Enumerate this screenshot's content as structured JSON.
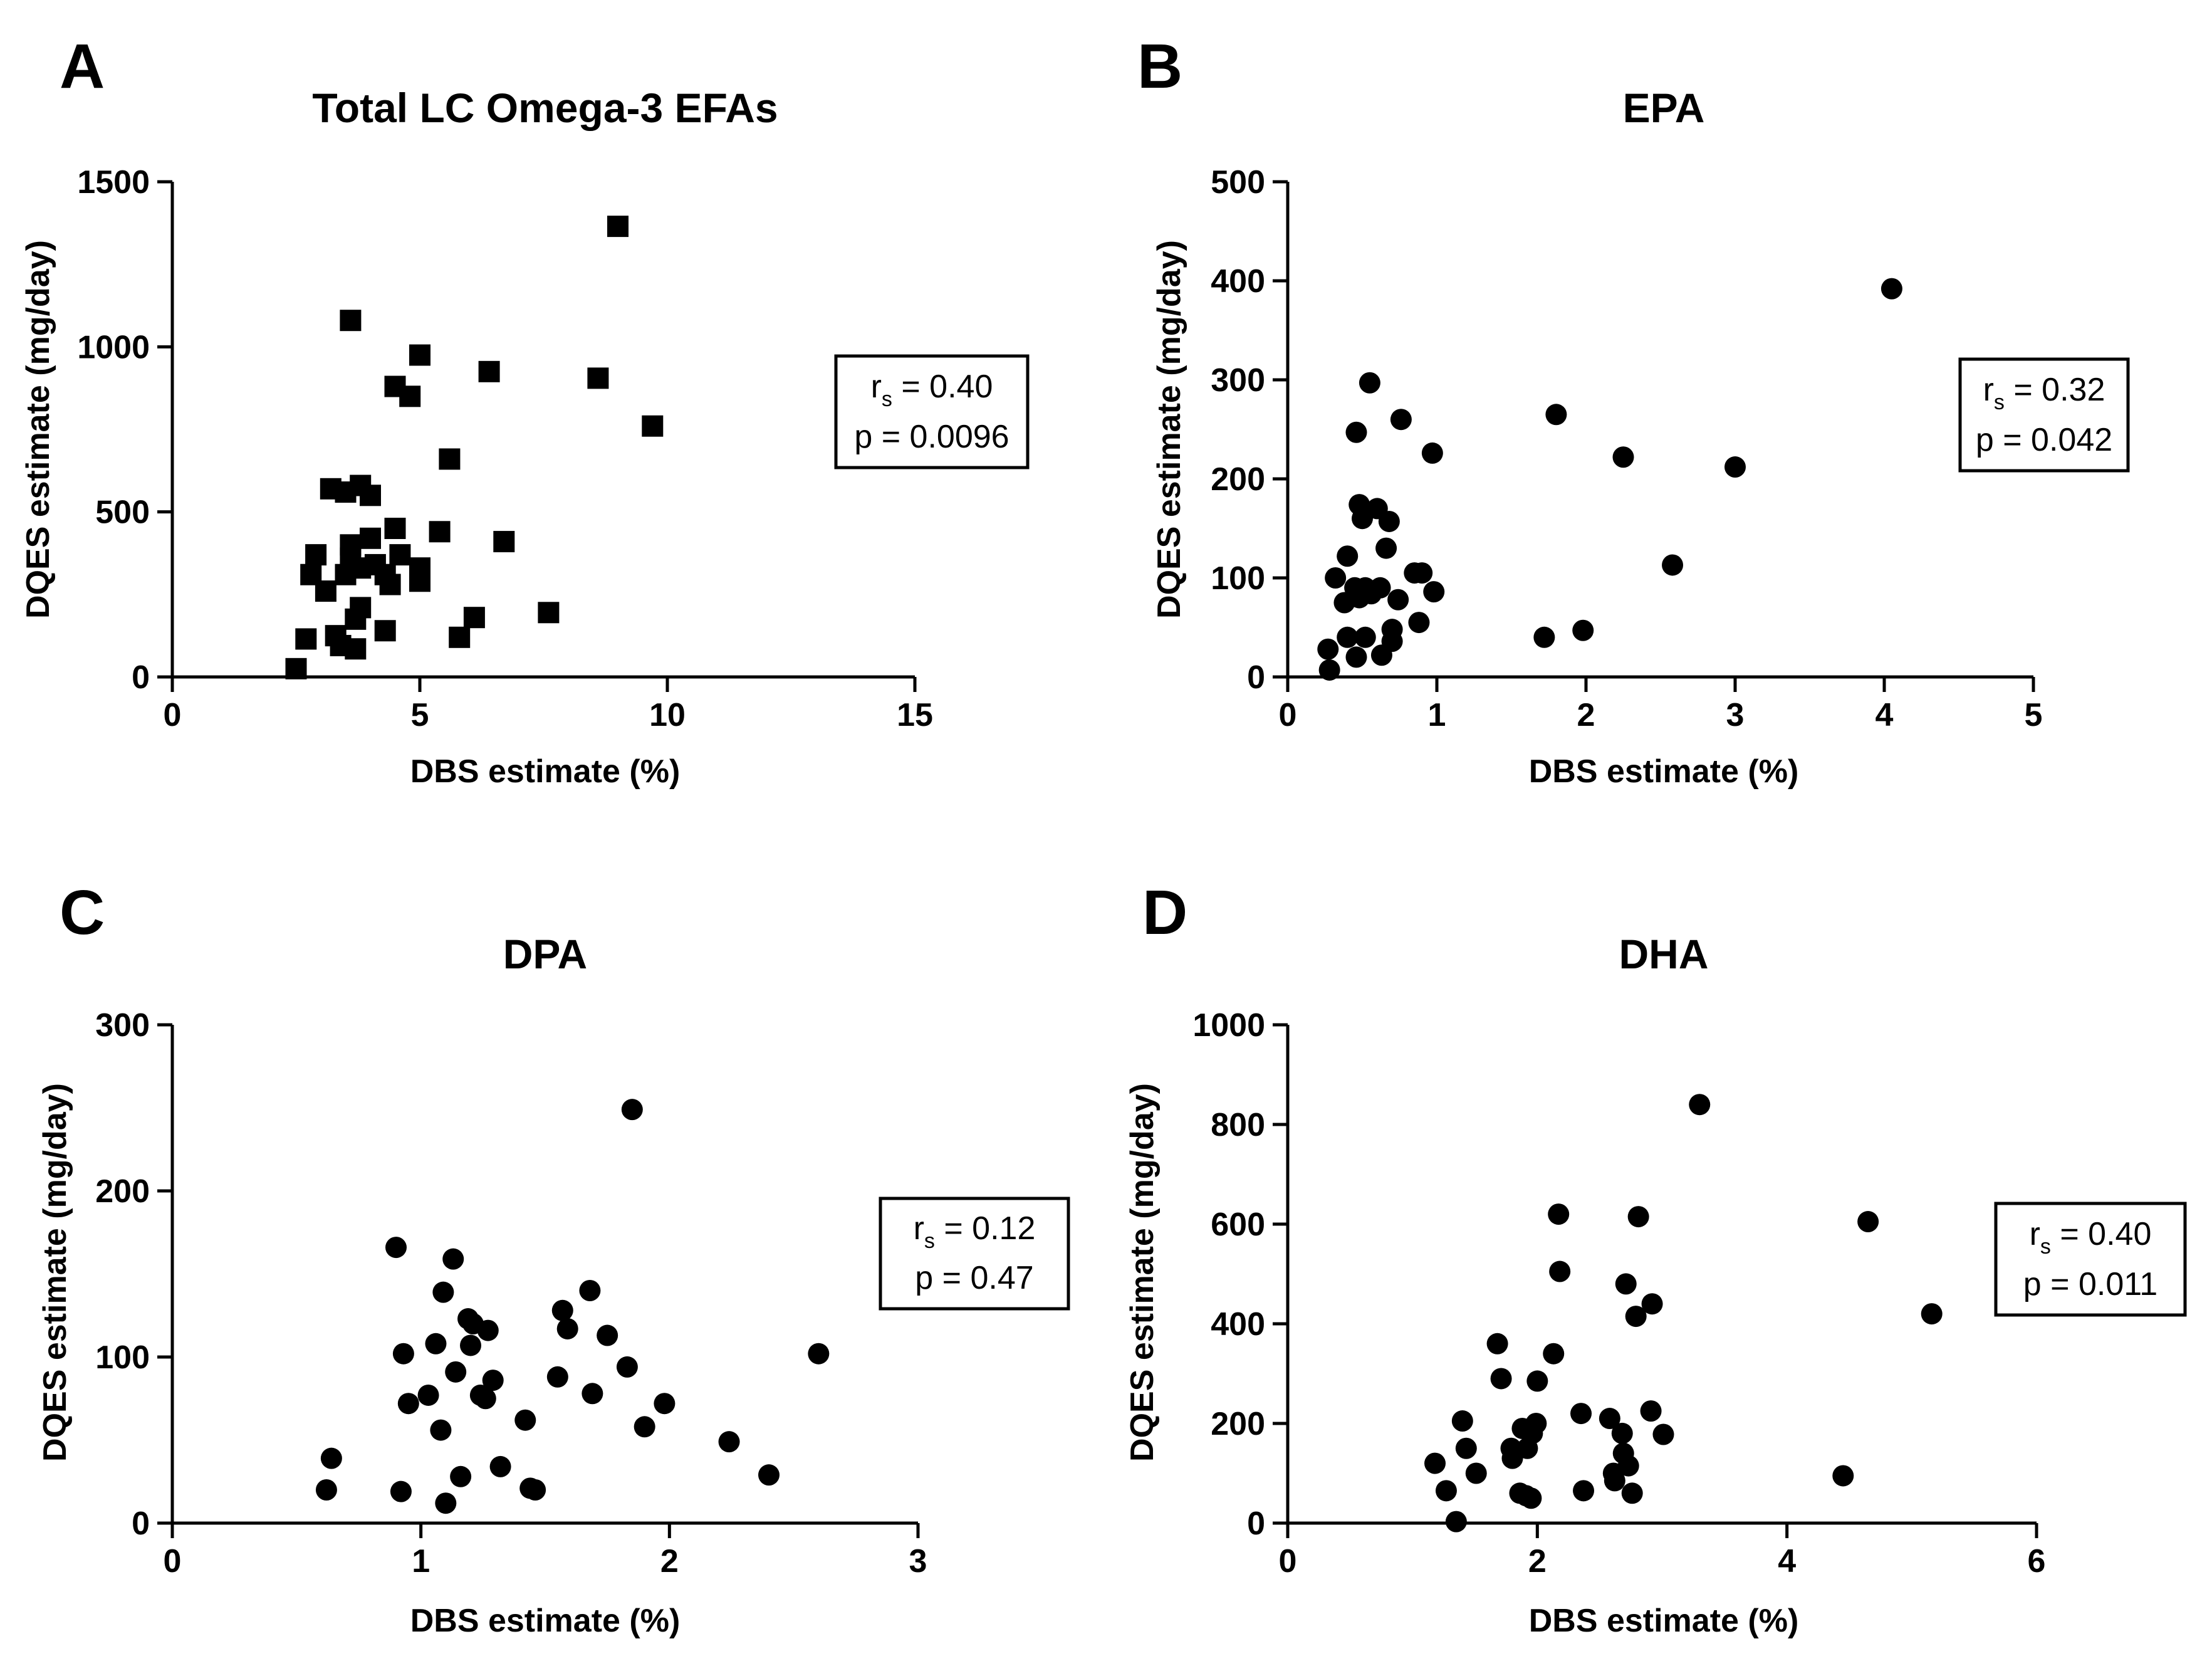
{
  "chart_data": [
    {
      "panel": "A",
      "type": "scatter",
      "title": "Total LC Omega-3 EFAs",
      "xlabel": "DBS estimate (%)",
      "ylabel": "DQES estimate (mg/day)",
      "xlim": [
        0,
        15
      ],
      "ylim": [
        0,
        1500
      ],
      "xticks": [
        0,
        5,
        10,
        15
      ],
      "yticks": [
        0,
        500,
        1000,
        1500
      ],
      "marker": "square",
      "stats": {
        "r_main": "r",
        "r_sub": "s",
        "r_value": " = 0.40",
        "p_text": "p = 0.0096"
      },
      "points": [
        [
          2.5,
          25
        ],
        [
          2.7,
          115
        ],
        [
          2.8,
          310
        ],
        [
          2.9,
          370
        ],
        [
          3.1,
          260
        ],
        [
          3.2,
          570
        ],
        [
          3.3,
          125
        ],
        [
          3.4,
          95
        ],
        [
          3.5,
          560
        ],
        [
          3.5,
          310
        ],
        [
          3.6,
          400
        ],
        [
          3.6,
          360
        ],
        [
          3.6,
          1080
        ],
        [
          3.7,
          85
        ],
        [
          3.7,
          175
        ],
        [
          3.8,
          580
        ],
        [
          3.8,
          330
        ],
        [
          3.8,
          210
        ],
        [
          4.0,
          550
        ],
        [
          4.0,
          420
        ],
        [
          4.1,
          340
        ],
        [
          4.3,
          310
        ],
        [
          4.3,
          140
        ],
        [
          4.4,
          280
        ],
        [
          4.5,
          880
        ],
        [
          4.5,
          450
        ],
        [
          4.6,
          370
        ],
        [
          4.8,
          850
        ],
        [
          5.0,
          975
        ],
        [
          5.0,
          330
        ],
        [
          5.0,
          290
        ],
        [
          5.4,
          440
        ],
        [
          5.6,
          660
        ],
        [
          5.8,
          120
        ],
        [
          6.1,
          180
        ],
        [
          6.4,
          925
        ],
        [
          6.7,
          410
        ],
        [
          7.6,
          195
        ],
        [
          8.6,
          905
        ],
        [
          9.0,
          1365
        ],
        [
          9.7,
          760
        ]
      ]
    },
    {
      "panel": "B",
      "type": "scatter",
      "title": "EPA",
      "xlabel": "DBS estimate (%)",
      "ylabel": "DQES estimate (mg/day)",
      "xlim": [
        0,
        5
      ],
      "ylim": [
        0,
        500
      ],
      "xticks": [
        0,
        1,
        2,
        3,
        4,
        5
      ],
      "yticks": [
        0,
        100,
        200,
        300,
        400,
        500
      ],
      "marker": "circle",
      "stats": {
        "r_main": "r",
        "r_sub": "s",
        "r_value": " = 0.32",
        "p_text": "p = 0.042"
      },
      "points": [
        [
          0.27,
          28
        ],
        [
          0.28,
          7
        ],
        [
          0.32,
          100
        ],
        [
          0.38,
          75
        ],
        [
          0.4,
          122
        ],
        [
          0.4,
          40
        ],
        [
          0.45,
          90
        ],
        [
          0.46,
          20
        ],
        [
          0.46,
          247
        ],
        [
          0.48,
          174
        ],
        [
          0.48,
          80
        ],
        [
          0.5,
          160
        ],
        [
          0.52,
          40
        ],
        [
          0.52,
          90
        ],
        [
          0.55,
          297
        ],
        [
          0.56,
          84
        ],
        [
          0.6,
          170
        ],
        [
          0.62,
          90
        ],
        [
          0.63,
          22
        ],
        [
          0.66,
          130
        ],
        [
          0.68,
          157
        ],
        [
          0.7,
          48
        ],
        [
          0.7,
          36
        ],
        [
          0.74,
          78
        ],
        [
          0.76,
          260
        ],
        [
          0.85,
          105
        ],
        [
          0.88,
          55
        ],
        [
          0.9,
          105
        ],
        [
          0.97,
          226
        ],
        [
          0.98,
          86
        ],
        [
          1.72,
          40
        ],
        [
          1.8,
          265
        ],
        [
          1.98,
          47
        ],
        [
          2.25,
          222
        ],
        [
          2.58,
          113
        ],
        [
          3.0,
          212
        ],
        [
          4.05,
          392
        ]
      ]
    },
    {
      "panel": "C",
      "type": "scatter",
      "title": "DPA",
      "xlabel": "DBS estimate (%)",
      "ylabel": "DQES estimate (mg/day)",
      "xlim": [
        0,
        3
      ],
      "ylim": [
        0,
        300
      ],
      "xticks": [
        0,
        1,
        2,
        3
      ],
      "yticks": [
        0,
        100,
        200,
        300
      ],
      "marker": "circle",
      "stats": {
        "r_main": "r",
        "r_sub": "s",
        "r_value": " = 0.12",
        "p_text": "p = 0.47"
      },
      "points": [
        [
          0.62,
          20
        ],
        [
          0.64,
          39
        ],
        [
          0.9,
          166
        ],
        [
          0.92,
          19
        ],
        [
          0.93,
          102
        ],
        [
          0.95,
          72
        ],
        [
          1.03,
          77
        ],
        [
          1.06,
          108
        ],
        [
          1.08,
          56
        ],
        [
          1.09,
          139
        ],
        [
          1.1,
          12
        ],
        [
          1.13,
          159
        ],
        [
          1.14,
          91
        ],
        [
          1.16,
          28
        ],
        [
          1.19,
          123
        ],
        [
          1.2,
          107
        ],
        [
          1.21,
          120
        ],
        [
          1.24,
          77
        ],
        [
          1.26,
          75
        ],
        [
          1.27,
          116
        ],
        [
          1.29,
          86
        ],
        [
          1.32,
          34
        ],
        [
          1.42,
          62
        ],
        [
          1.44,
          21
        ],
        [
          1.46,
          20
        ],
        [
          1.55,
          88
        ],
        [
          1.57,
          128
        ],
        [
          1.59,
          117
        ],
        [
          1.68,
          140
        ],
        [
          1.69,
          78
        ],
        [
          1.75,
          113
        ],
        [
          1.83,
          94
        ],
        [
          1.85,
          249
        ],
        [
          1.9,
          58
        ],
        [
          1.98,
          72
        ],
        [
          2.24,
          49
        ],
        [
          2.4,
          29
        ],
        [
          2.6,
          102
        ]
      ]
    },
    {
      "panel": "D",
      "type": "scatter",
      "title": "DHA",
      "xlabel": "DBS estimate (%)",
      "ylabel": "DQES estimate (mg/day)",
      "xlim": [
        0,
        6
      ],
      "ylim": [
        0,
        1000
      ],
      "xticks": [
        0,
        2,
        4,
        6
      ],
      "yticks": [
        0,
        200,
        400,
        600,
        800,
        1000
      ],
      "marker": "circle",
      "stats": {
        "r_main": "r",
        "r_sub": "s",
        "r_value": " = 0.40",
        "p_text": "p = 0.011"
      },
      "points": [
        [
          1.18,
          120
        ],
        [
          1.27,
          65
        ],
        [
          1.35,
          3
        ],
        [
          1.4,
          205
        ],
        [
          1.43,
          150
        ],
        [
          1.51,
          100
        ],
        [
          1.68,
          360
        ],
        [
          1.71,
          290
        ],
        [
          1.79,
          150
        ],
        [
          1.8,
          130
        ],
        [
          1.86,
          60
        ],
        [
          1.88,
          190
        ],
        [
          1.91,
          55
        ],
        [
          1.92,
          150
        ],
        [
          1.95,
          50
        ],
        [
          1.96,
          180
        ],
        [
          1.99,
          200
        ],
        [
          2.0,
          285
        ],
        [
          2.13,
          340
        ],
        [
          2.17,
          620
        ],
        [
          2.18,
          505
        ],
        [
          2.35,
          220
        ],
        [
          2.37,
          65
        ],
        [
          2.58,
          210
        ],
        [
          2.61,
          100
        ],
        [
          2.62,
          85
        ],
        [
          2.68,
          180
        ],
        [
          2.69,
          140
        ],
        [
          2.71,
          480
        ],
        [
          2.73,
          115
        ],
        [
          2.76,
          60
        ],
        [
          2.79,
          415
        ],
        [
          2.81,
          615
        ],
        [
          2.91,
          225
        ],
        [
          2.92,
          440
        ],
        [
          3.01,
          178
        ],
        [
          3.3,
          840
        ],
        [
          4.45,
          95
        ],
        [
          4.65,
          605
        ],
        [
          5.16,
          420
        ]
      ]
    }
  ]
}
